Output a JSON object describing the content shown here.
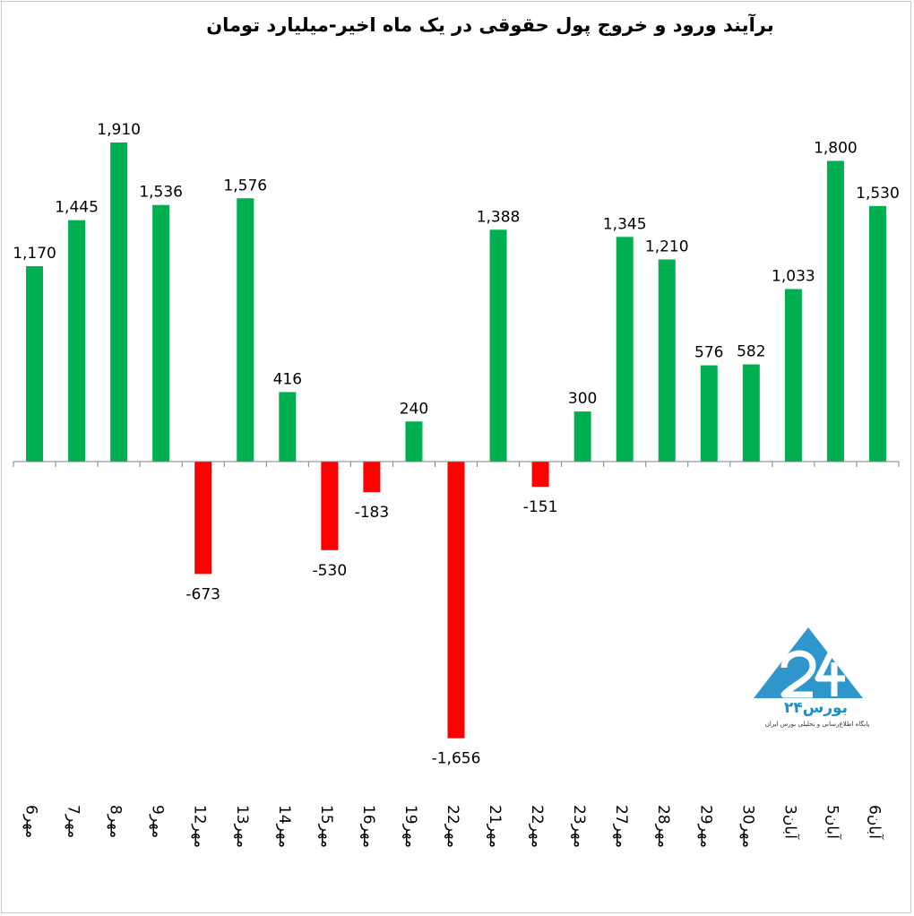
{
  "chart_data": {
    "type": "bar",
    "title": "برآیند ورود و خروج پول حقوقی در یک ماه اخیر-میلیارد تومان",
    "categories": [
      "6مهر",
      "7مهر",
      "8مهر",
      "9مهر",
      "12مهر",
      "13مهر",
      "14مهر",
      "15مهر",
      "16مهر",
      "19مهر",
      "22مهر",
      "21مهر",
      "22مهر",
      "23مهر",
      "27مهر",
      "28مهر",
      "29مهر",
      "30مهر",
      "3آبان",
      "5آبان",
      "6آبان"
    ],
    "values": [
      1170,
      1445,
      1910,
      1536,
      -673,
      1576,
      416,
      -530,
      -183,
      240,
      -1656,
      1388,
      -151,
      300,
      1345,
      1210,
      576,
      582,
      1033,
      1800,
      1530
    ],
    "value_labels": [
      "1,170",
      "1,445",
      "1,910",
      "1,536",
      "-673",
      "1,576",
      "416",
      "-530",
      "-183",
      "240",
      "-1,656",
      "1,388",
      "-151",
      "300",
      "1,345",
      "1,210",
      "576",
      "582",
      "1,033",
      "1,800",
      "1,530"
    ],
    "colors": {
      "positive": "#00b050",
      "negative": "#ff0000"
    },
    "ylim": [
      -1656,
      1910
    ],
    "grid": false,
    "legend": "none"
  },
  "logo": {
    "text_main": "بورس۲۴",
    "text_sub": "پایگاه اطلاع‌رسانی و تحلیلی بورس ایران"
  }
}
